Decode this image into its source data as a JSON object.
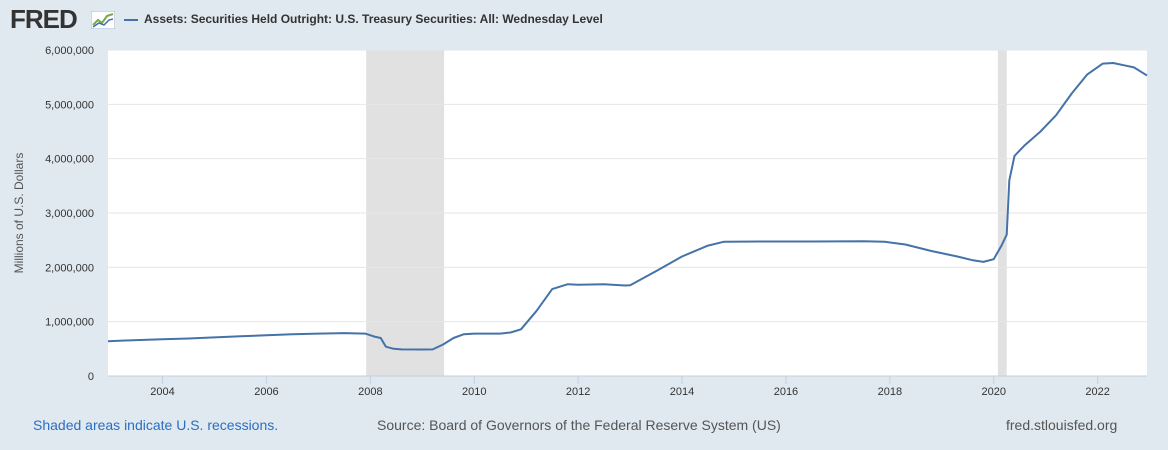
{
  "header": {
    "logo_text": "FRED",
    "logo_icon": "fred-chart-icon",
    "series_title": "Assets: Securities Held Outright: U.S. Treasury Securities: All: Wednesday Level",
    "series_color": "#4572a7"
  },
  "footer": {
    "recession_note": "Shaded areas indicate U.S. recessions.",
    "source": "Source: Board of Governors of the Federal Reserve System (US)",
    "site": "fred.stlouisfed.org"
  },
  "chart_data": {
    "type": "line",
    "title": "Assets: Securities Held Outright: U.S. Treasury Securities: All: Wednesday Level",
    "xlabel": "",
    "ylabel": "Millions of U.S. Dollars",
    "xlim": [
      2002.95,
      2022.95
    ],
    "ylim": [
      0,
      6000000
    ],
    "grid": true,
    "xticks": [
      2004,
      2006,
      2008,
      2010,
      2012,
      2014,
      2016,
      2018,
      2020,
      2022
    ],
    "xtick_labels": [
      "2004",
      "2006",
      "2008",
      "2010",
      "2012",
      "2014",
      "2016",
      "2018",
      "2020",
      "2022"
    ],
    "yticks": [
      0,
      1000000,
      2000000,
      3000000,
      4000000,
      5000000,
      6000000
    ],
    "ytick_labels": [
      "0",
      "1,000,000",
      "2,000,000",
      "3,000,000",
      "4,000,000",
      "5,000,000",
      "6,000,000"
    ],
    "recessions": [
      [
        2007.92,
        2009.42
      ],
      [
        2020.08,
        2020.25
      ]
    ],
    "recession_color": "#e1e1e1",
    "series": [
      {
        "name": "Assets: Securities Held Outright: U.S. Treasury Securities: All: Wednesday Level",
        "color": "#4572a7",
        "x": [
          2002.95,
          2003.5,
          2004.0,
          2004.5,
          2005.0,
          2005.5,
          2006.0,
          2006.5,
          2007.0,
          2007.5,
          2007.9,
          2008.1,
          2008.2,
          2008.3,
          2008.45,
          2008.6,
          2009.0,
          2009.2,
          2009.4,
          2009.6,
          2009.8,
          2010.0,
          2010.5,
          2010.7,
          2010.9,
          2011.2,
          2011.5,
          2011.8,
          2012.0,
          2012.5,
          2012.9,
          2013.0,
          2013.5,
          2014.0,
          2014.5,
          2014.8,
          2015.5,
          2016.5,
          2017.5,
          2017.9,
          2018.3,
          2018.8,
          2019.3,
          2019.6,
          2019.8,
          2020.0,
          2020.15,
          2020.2,
          2020.25,
          2020.3,
          2020.4,
          2020.6,
          2020.9,
          2021.2,
          2021.5,
          2021.8,
          2022.1,
          2022.3,
          2022.5,
          2022.7,
          2022.95
        ],
        "values": [
          640000,
          660000,
          675000,
          690000,
          710000,
          730000,
          750000,
          770000,
          780000,
          790000,
          780000,
          720000,
          700000,
          540000,
          500000,
          490000,
          488000,
          490000,
          580000,
          700000,
          770000,
          780000,
          780000,
          800000,
          860000,
          1200000,
          1600000,
          1690000,
          1680000,
          1690000,
          1665000,
          1670000,
          1930000,
          2200000,
          2400000,
          2470000,
          2475000,
          2475000,
          2480000,
          2470000,
          2420000,
          2300000,
          2200000,
          2130000,
          2100000,
          2150000,
          2400000,
          2500000,
          2600000,
          3600000,
          4050000,
          4250000,
          4500000,
          4800000,
          5200000,
          5550000,
          5750000,
          5760000,
          5720000,
          5680000,
          5530000
        ]
      }
    ]
  }
}
